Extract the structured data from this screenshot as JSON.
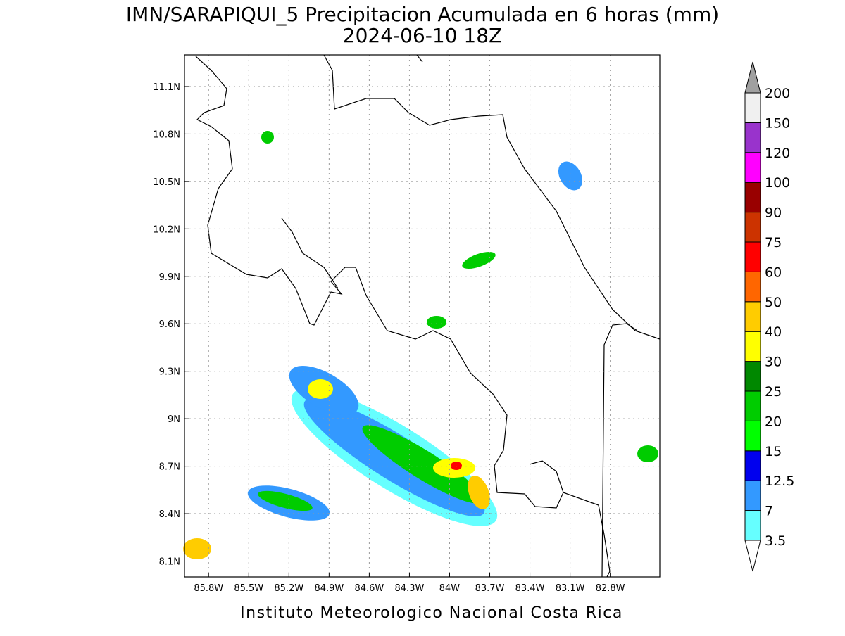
{
  "title": "IMN/SARAPIQUI_5 Precipitacion Acumulada en 6 horas (mm)",
  "subtitle": "2024-06-10 18Z",
  "footer": "Instituto Meteorologico Nacional Costa Rica",
  "map": {
    "lonlim": [
      -85.98,
      -82.43
    ],
    "latlim": [
      8.0,
      11.3
    ],
    "lon_ticks": [
      {
        "value": -85.8,
        "label": "85.8W"
      },
      {
        "value": -85.5,
        "label": "85.5W"
      },
      {
        "value": -85.2,
        "label": "85.2W"
      },
      {
        "value": -84.9,
        "label": "84.9W"
      },
      {
        "value": -84.6,
        "label": "84.6W"
      },
      {
        "value": -84.3,
        "label": "84.3W"
      },
      {
        "value": -84.0,
        "label": "84W"
      },
      {
        "value": -83.7,
        "label": "83.7W"
      },
      {
        "value": -83.4,
        "label": "83.4W"
      },
      {
        "value": -83.1,
        "label": "83.1W"
      },
      {
        "value": -82.8,
        "label": "82.8W"
      }
    ],
    "lat_ticks": [
      {
        "value": 8.1,
        "label": "8.1N"
      },
      {
        "value": 8.4,
        "label": "8.4N"
      },
      {
        "value": 8.7,
        "label": "8.7N"
      },
      {
        "value": 9.0,
        "label": "9N"
      },
      {
        "value": 9.3,
        "label": "9.3N"
      },
      {
        "value": 9.6,
        "label": "9.6N"
      },
      {
        "value": 9.9,
        "label": "9.9N"
      },
      {
        "value": 10.2,
        "label": "10.2N"
      },
      {
        "value": 10.5,
        "label": "10.5N"
      },
      {
        "value": 10.8,
        "label": "10.8N"
      },
      {
        "value": 11.1,
        "label": "11.1N"
      }
    ]
  },
  "colorbar": {
    "levels": [
      3.5,
      7,
      12.5,
      15,
      20,
      25,
      30,
      40,
      50,
      60,
      75,
      90,
      100,
      120,
      150,
      200
    ],
    "colors": [
      "#66ffff",
      "#3399ff",
      "#0000ee",
      "#00ff00",
      "#00cc00",
      "#008800",
      "#ffff00",
      "#ffcc00",
      "#ff6600",
      "#ff0000",
      "#cc3300",
      "#990000",
      "#ff00ff",
      "#9933cc",
      "#f0f0f0"
    ],
    "over_color": "#a0a0a0",
    "under_color": "#ffffff"
  }
}
